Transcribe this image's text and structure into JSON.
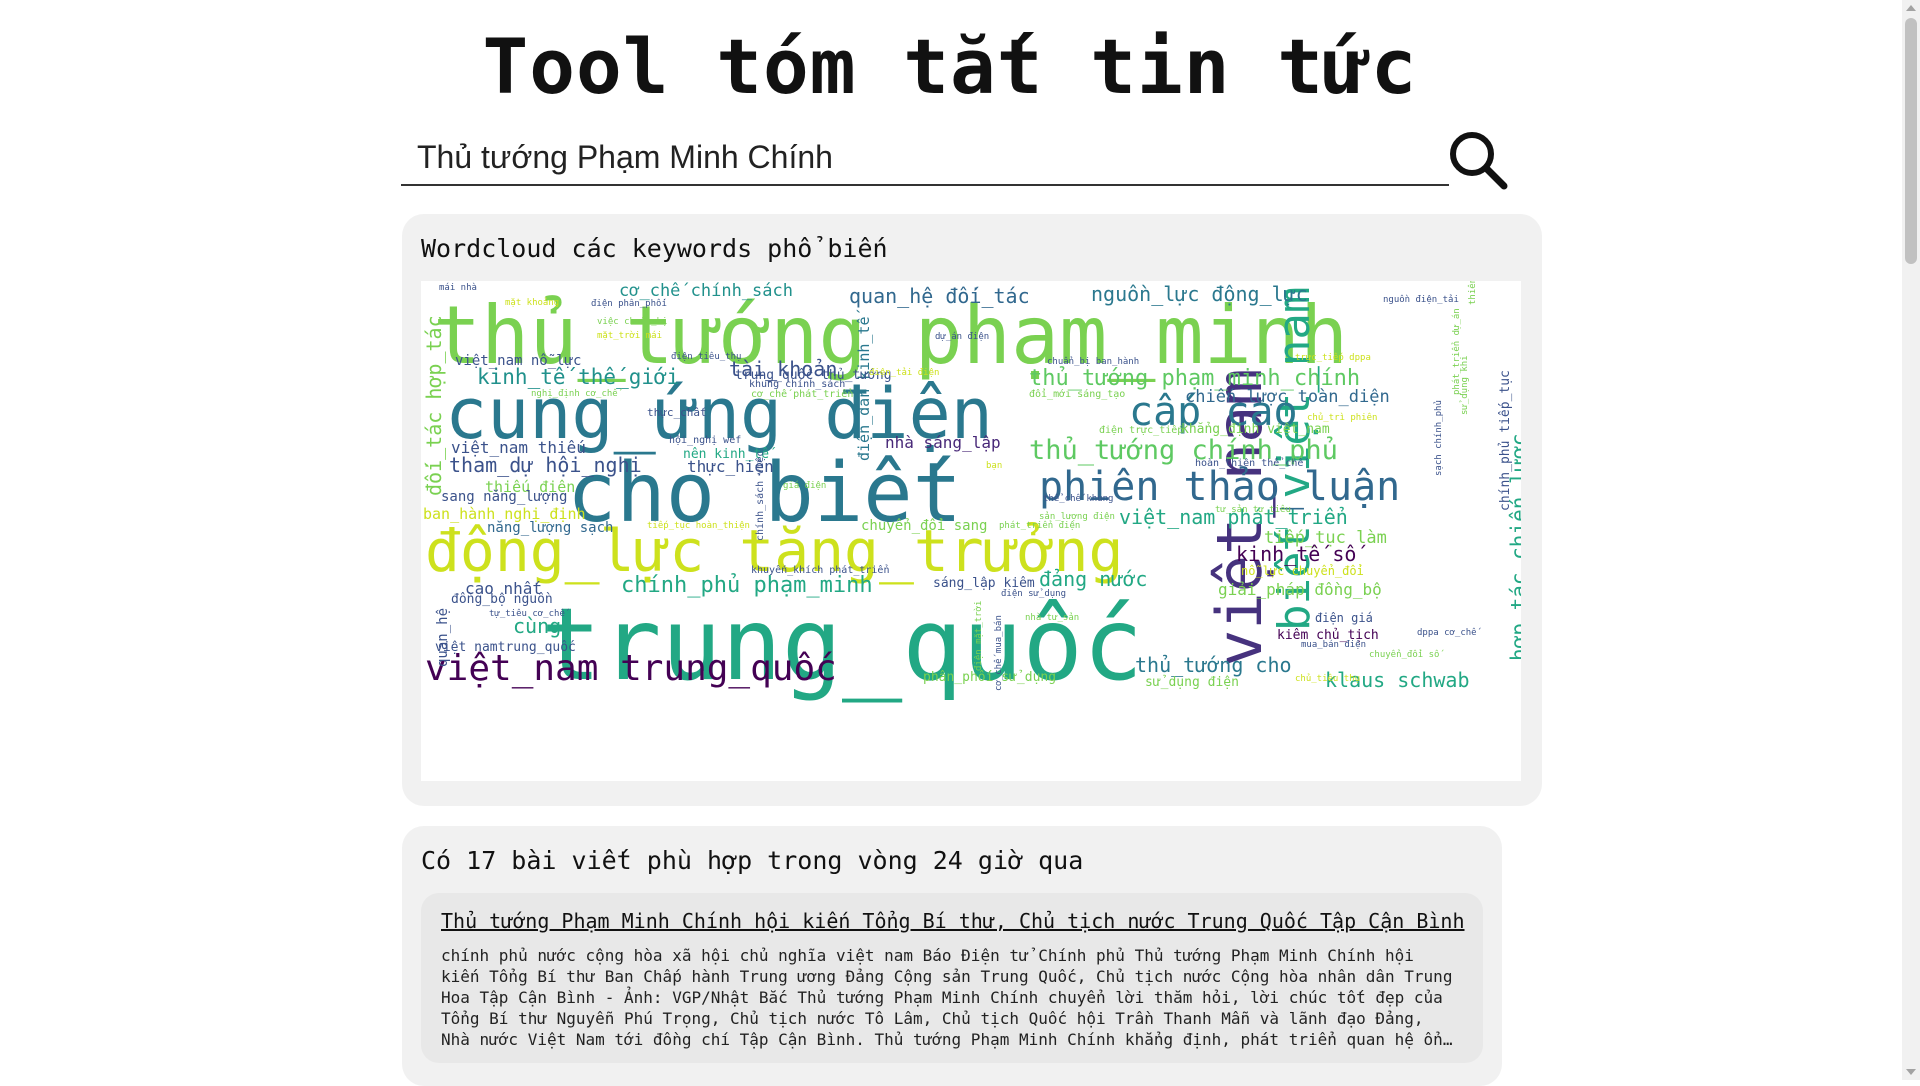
{
  "header": {
    "title": "Tool tóm tắt tin tức"
  },
  "search": {
    "value": "Thủ tướng Phạm Minh Chính",
    "icon": "search-icon"
  },
  "wordcloud": {
    "title": "Wordcloud các keywords phổ biến",
    "words": [
      {
        "text": "thủ_tướng phạm_minh",
        "color": "#7ad151"
      },
      {
        "text": "cung_ứng điện",
        "color": "#2a788e"
      },
      {
        "text": "cho biết",
        "color": "#2a788e"
      },
      {
        "text": "động_lực tăng_trưởng",
        "color": "#cde11d"
      },
      {
        "text": "trung_quốc",
        "color": "#22a884"
      },
      {
        "text": "việt_nam",
        "color": "#46327e"
      },
      {
        "text": "biết việt_nam",
        "color": "#22a884"
      },
      {
        "text": "phiên thảo_luận",
        "color": "#31688e"
      },
      {
        "text": "cấp cao",
        "color": "#2a788e"
      },
      {
        "text": "thủ_tướng chính_phủ",
        "color": "#5ec962"
      },
      {
        "text": "thủ_tướng phạm_minh_chính",
        "color": "#5ec962"
      },
      {
        "text": "việt_nam trung_quốc",
        "color": "#440154"
      },
      {
        "text": "chính_phủ phạm_minh",
        "color": "#22a884"
      },
      {
        "text": "kinh_tế thế_giới",
        "color": "#21918c"
      },
      {
        "text": "tài_khoản",
        "color": "#3b528b"
      },
      {
        "text": "quan_hệ đối_tác",
        "color": "#31688e"
      },
      {
        "text": "nguồn_lực động_lực",
        "color": "#2a788e"
      },
      {
        "text": "cơ_chế chính_sách",
        "color": "#21918c"
      },
      {
        "text": "chiến_lược toàn_diện",
        "color": "#31688e"
      },
      {
        "text": "việt_nam phát_triển",
        "color": "#22a884"
      },
      {
        "text": "tiếp_tục làm",
        "color": "#7ad151"
      },
      {
        "text": "kinh_tế số",
        "color": "#440154"
      },
      {
        "text": "giải_pháp đồng_bộ",
        "color": "#7ad151"
      },
      {
        "text": "đảng nước",
        "color": "#22a884"
      },
      {
        "text": "tham_dự hội_nghị",
        "color": "#3b528b"
      },
      {
        "text": "thực_hiện",
        "color": "#3b528b"
      },
      {
        "text": "việt_nam thiếu",
        "color": "#3b528b"
      },
      {
        "text": "thiếu điện",
        "color": "#7ad151"
      },
      {
        "text": "ban_hành nghị_định",
        "color": "#cde11d"
      },
      {
        "text": "nhà sáng_lập",
        "color": "#482878"
      },
      {
        "text": "nên kinh_tế",
        "color": "#22a884"
      },
      {
        "text": "cao nhất",
        "color": "#3b528b"
      },
      {
        "text": "cùng",
        "color": "#22a884"
      },
      {
        "text": "thủ_tướng cho",
        "color": "#2a788e"
      },
      {
        "text": "klaus schwab",
        "color": "#22a884"
      },
      {
        "text": "đối_tác hợp_tác",
        "color": "#7ad151"
      },
      {
        "text": "hợp_tác chiến_lược",
        "color": "#22a884"
      },
      {
        "text": "điện_dân kinh_tế",
        "color": "#2a788e"
      },
      {
        "text": "việt_nam nỗ_lực",
        "color": "#3b528b"
      },
      {
        "text": "sang năng_lượng",
        "color": "#3b528b"
      },
      {
        "text": "năng_lượng sạch",
        "color": "#31688e"
      },
      {
        "text": "chuyển_đổi sang",
        "color": "#7ad151"
      },
      {
        "text": "sáng_lập kiêm",
        "color": "#3b528b"
      },
      {
        "text": "kiêm chủ_tịch",
        "color": "#440154"
      },
      {
        "text": "điện giá",
        "color": "#3b528b"
      },
      {
        "text": "phân_phối sử_dụng",
        "color": "#7ad151"
      },
      {
        "text": "sử_dụng điện",
        "color": "#7ad151"
      },
      {
        "text": "đồng_bộ nguồn",
        "color": "#3b528b"
      },
      {
        "text": "việt namtrung_quốc",
        "color": "#3b528b"
      },
      {
        "text": "khẳng_định việt_nam",
        "color": "#7ad151"
      },
      {
        "text": "nỗ_lực chuyển_đổi",
        "color": "#cde11d"
      },
      {
        "text": "trung_quốc thủ_tướng",
        "color": "#3b528b"
      },
      {
        "text": "quan_hệ",
        "color": "#3b528b"
      },
      {
        "text": "thực_chất",
        "color": "#3b528b"
      },
      {
        "text": "hội_nghị wef",
        "color": "#3b528b"
      },
      {
        "text": "khuyến_khích phát_triển",
        "color": "#3b528b"
      },
      {
        "text": "khung chính_sách",
        "color": "#3b528b"
      },
      {
        "text": "cơ_chế phát_triển",
        "color": "#7ad151"
      },
      {
        "text": "đổi_mới sáng_tạo",
        "color": "#7ad151"
      },
      {
        "text": "điện trực_tiếp",
        "color": "#7ad151"
      },
      {
        "text": "hoàn_thiện thể_chế",
        "color": "#3b528b"
      },
      {
        "text": "mái nhà",
        "color": "#3b528b"
      },
      {
        "text": "mặt khoảng",
        "color": "#cde11d"
      },
      {
        "text": "điện phân_phối",
        "color": "#3b528b"
      },
      {
        "text": "việc chuẩn_bị",
        "color": "#7ad151"
      },
      {
        "text": "mặt_trời mái",
        "color": "#cde11d"
      },
      {
        "text": "điện tiêu_thụ",
        "color": "#3b528b"
      },
      {
        "text": "dự_án điện",
        "color": "#3b528b"
      },
      {
        "text": "nghị_định cơ_chế",
        "color": "#7ad151"
      },
      {
        "text": "nguồn điện_tải",
        "color": "#3b528b"
      },
      {
        "text": "chuẩn_bị ban_hành",
        "color": "#3b528b"
      },
      {
        "text": "trực_tiếp dppa",
        "color": "#cde11d"
      },
      {
        "text": "chủ_trì phiên",
        "color": "#cde11d"
      },
      {
        "text": "giá điện",
        "color": "#7ad151"
      },
      {
        "text": "tư_sản tư_tiêu",
        "color": "#7ad151"
      },
      {
        "text": "sản_lượng điện",
        "color": "#7ad151"
      },
      {
        "text": "thể_chế khung",
        "color": "#3b528b"
      },
      {
        "text": "tiếp_tục hoàn_thiện",
        "color": "#cde11d"
      },
      {
        "text": "phát_triển điện",
        "color": "#7ad151"
      },
      {
        "text": "chính_sách việc",
        "color": "#3b528b"
      },
      {
        "text": "điện sử_dụng",
        "color": "#3b528b"
      },
      {
        "text": "nhà tư_sản",
        "color": "#7ad151"
      },
      {
        "text": "tự_tiêu cơ_chế",
        "color": "#3b528b"
      },
      {
        "text": "điện mặt_trời",
        "color": "#7ad151"
      },
      {
        "text": "cơ_chế mua_bán",
        "color": "#3b528b"
      },
      {
        "text": "mua_bán điện",
        "color": "#3b528b"
      },
      {
        "text": "dppa cơ_chế",
        "color": "#3b528b"
      },
      {
        "text": "chủ_tiêu thụ",
        "color": "#cde11d"
      },
      {
        "text": "chuyển_đổi số",
        "color": "#7ad151"
      },
      {
        "text": "điện_tải điện",
        "color": "#cde11d"
      },
      {
        "text": "phát_triển dự_án",
        "color": "#7ad151"
      },
      {
        "text": "sạch chính_phủ",
        "color": "#3b528b"
      },
      {
        "text": "sử_dụng khi",
        "color": "#7ad151"
      },
      {
        "text": "thiên_nhiên",
        "color": "#7ad151"
      },
      {
        "text": "chính_phủ tiếp_tục",
        "color": "#3b528b"
      },
      {
        "text": "bạn",
        "color": "#cde11d"
      }
    ]
  },
  "articles": {
    "header": "Có 17 bài viết phù hợp trong vòng 24 giờ qua",
    "items": [
      {
        "title": "Thủ tướng Phạm Minh Chính hội kiến Tổng Bí thư, Chủ tịch nước Trung Quốc Tập Cận Bình",
        "summary": "chính phủ nước cộng hòa xã hội chủ nghĩa việt nam Báo Điện tử Chính phủ Thủ tướng Phạm Minh Chính hội kiến Tổng Bí thư Ban Chấp hành Trung ương Đảng Cộng sản Trung Quốc, Chủ tịch nước Cộng hòa nhân dân Trung Hoa Tập Cận Bình - Ảnh: VGP/Nhật Bắc Thủ tướng Phạm Minh Chính chuyển lời thăm hỏi, lời chúc tốt đẹp của Tổng Bí thư Nguyễn Phú Trọng, Chủ tịch nước Tô Lâm, Chủ tịch Quốc hội Trần Thanh Mẫn và lãnh đạo Đảng, Nhà nước Việt Nam tới đồng chí Tập Cận Bình. Thủ tướng Phạm Minh Chính khẳng định, phát triển quan hệ ổn định, bền vững, lâu dài với Trung Quốc là lựa chọn chiến lược."
      }
    ]
  }
}
